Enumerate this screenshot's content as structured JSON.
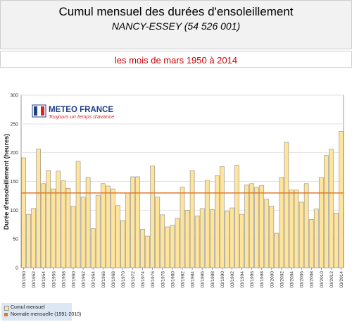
{
  "header": {
    "title": "Cumul mensuel des durées d'ensoleillement",
    "station": "NANCY-ESSEY (54 526 001)"
  },
  "subtitle": "les mois de mars 1950 à 2014",
  "logo": {
    "name": "METEO FRANCE",
    "tagline": "Toujours un temps d'avance"
  },
  "legend": {
    "items": [
      {
        "label": "Cumul mensuel",
        "color": "#ffe49b"
      },
      {
        "label": "Normale mensuelle (1991-2010)",
        "color": "#e07a2a"
      }
    ]
  },
  "chart_data": {
    "type": "bar",
    "ylabel": "Durée d'ensoleillement (heures)",
    "ylim": [
      0,
      300
    ],
    "yticks": [
      0,
      50,
      100,
      150,
      200,
      250,
      300
    ],
    "normal": 130,
    "bar_color": "#ffe49b",
    "normal_color": "#e07a2a",
    "categories": [
      "03/1950",
      "03/1951",
      "03/1952",
      "03/1953",
      "03/1954",
      "03/1955",
      "03/1956",
      "03/1957",
      "03/1958",
      "03/1959",
      "03/1960",
      "03/1961",
      "03/1962",
      "03/1963",
      "03/1964",
      "03/1965",
      "03/1966",
      "03/1967",
      "03/1968",
      "03/1969",
      "03/1970",
      "03/1971",
      "03/1972",
      "03/1973",
      "03/1974",
      "03/1975",
      "03/1976",
      "03/1977",
      "03/1978",
      "03/1979",
      "03/1980",
      "03/1981",
      "03/1982",
      "03/1983",
      "03/1984",
      "03/1985",
      "03/1986",
      "03/1987",
      "03/1988",
      "03/1989",
      "03/1990",
      "03/1991",
      "03/1992",
      "03/1993",
      "03/1994",
      "03/1995",
      "03/1996",
      "03/1997",
      "03/1998",
      "03/1999",
      "03/2000",
      "03/2001",
      "03/2002",
      "03/2003",
      "03/2004",
      "03/2005",
      "03/2006",
      "03/2007",
      "03/2008",
      "03/2009",
      "03/2010",
      "03/2011",
      "03/2012",
      "03/2013",
      "03/2014"
    ],
    "tick_labels": [
      "03/1950",
      "03/1952",
      "03/1954",
      "03/1956",
      "03/1958",
      "03/1960",
      "03/1962",
      "03/1964",
      "03/1966",
      "03/1968",
      "03/1970",
      "03/1972",
      "03/1974",
      "03/1976",
      "03/1978",
      "03/1980",
      "03/1982",
      "03/1984",
      "03/1986",
      "03/1988",
      "03/1990",
      "03/1992",
      "03/1994",
      "03/1996",
      "03/1998",
      "03/2000",
      "03/2002",
      "03/2004",
      "03/2006",
      "03/2008",
      "03/2010",
      "03/2012",
      "03/2014"
    ],
    "values": [
      191,
      93,
      103,
      206,
      146,
      169,
      137,
      168,
      151,
      138,
      107,
      185,
      123,
      157,
      68,
      126,
      146,
      142,
      137,
      108,
      82,
      130,
      158,
      158,
      67,
      55,
      177,
      123,
      92,
      71,
      74,
      86,
      140,
      100,
      169,
      90,
      103,
      152,
      101,
      160,
      176,
      98,
      104,
      178,
      93,
      144,
      146,
      140,
      143,
      119,
      107,
      60,
      157,
      218,
      135,
      135,
      114,
      146,
      84,
      102,
      157,
      195,
      206,
      95,
      237
    ]
  }
}
